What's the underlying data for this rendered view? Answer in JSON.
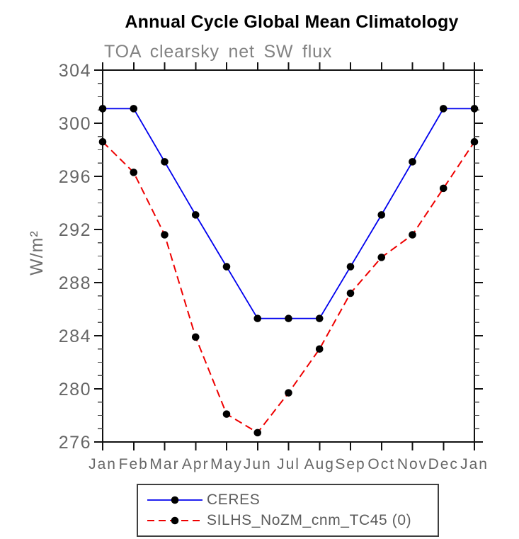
{
  "header": {
    "title": "Annual Cycle Global Mean Climatology",
    "subtitle": "TOA clearsky net SW flux"
  },
  "chart_data": {
    "type": "line",
    "title": "Annual Cycle Global Mean Climatology",
    "subtitle": "TOA clearsky net SW flux",
    "xlabel": "",
    "ylabel": "W/m²",
    "categories": [
      "Jan",
      "Feb",
      "Mar",
      "Apr",
      "May",
      "Jun",
      "Jul",
      "Aug",
      "Sep",
      "Oct",
      "Nov",
      "Dec",
      "Jan"
    ],
    "ylim": [
      276,
      304
    ],
    "yticks_major": [
      276,
      280,
      284,
      288,
      292,
      296,
      300,
      304
    ],
    "ytick_minor_step": 1,
    "grid": false,
    "legend_position": "bottom-center",
    "series": [
      {
        "name": "CERES",
        "color": "#0000ee",
        "line_style": "solid",
        "marker": "filled-circle",
        "marker_color": "#000000",
        "values": [
          301.1,
          301.1,
          297.1,
          293.1,
          289.2,
          285.3,
          285.3,
          285.3,
          289.2,
          293.1,
          297.1,
          301.1,
          301.1
        ]
      },
      {
        "name": "SILHS_NoZM_cnm_TC45 (0)",
        "color": "#ee0000",
        "line_style": "dashed",
        "marker": "filled-circle",
        "marker_color": "#000000",
        "values": [
          298.6,
          296.3,
          291.6,
          283.9,
          278.1,
          276.7,
          279.7,
          283.0,
          287.2,
          289.9,
          291.6,
          295.1,
          298.6
        ]
      }
    ]
  },
  "colors": {
    "title": "#000000",
    "subtitle": "#828282",
    "tick_label": "#666666",
    "legend_text": "#5c5c5c",
    "axis": "#111111",
    "minor_tick": "#4a4a4a",
    "legend_border": "#3f3f3f",
    "background": "#ffffff"
  }
}
